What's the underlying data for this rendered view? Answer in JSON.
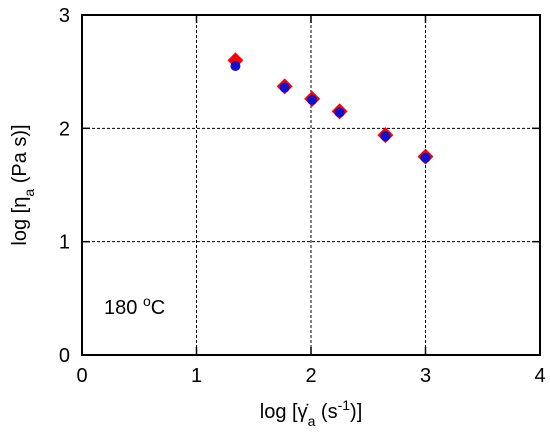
{
  "chart_data": {
    "type": "scatter",
    "xlabel": "log [γ̇a (s-1)]",
    "ylabel": "log [ηa (Pa s)]",
    "xlim": [
      0,
      4
    ],
    "ylim": [
      0,
      3
    ],
    "x_ticks": [
      "0",
      "1",
      "2",
      "3",
      "4"
    ],
    "y_ticks": [
      "0",
      "1",
      "2",
      "3"
    ],
    "grid": true,
    "annotation": "180 °C",
    "series": [
      {
        "marker": "diamond",
        "color": "#ff0000",
        "x": [
          1.34,
          1.77,
          2.01,
          2.25,
          2.65,
          3.0
        ],
        "y": [
          2.6,
          2.37,
          2.26,
          2.15,
          1.94,
          1.75
        ]
      },
      {
        "marker": "circle",
        "color": "#1010cc",
        "x": [
          1.34,
          1.77,
          2.01,
          2.25,
          2.65,
          3.0
        ],
        "y": [
          2.55,
          2.36,
          2.25,
          2.14,
          1.93,
          1.74
        ]
      }
    ]
  }
}
